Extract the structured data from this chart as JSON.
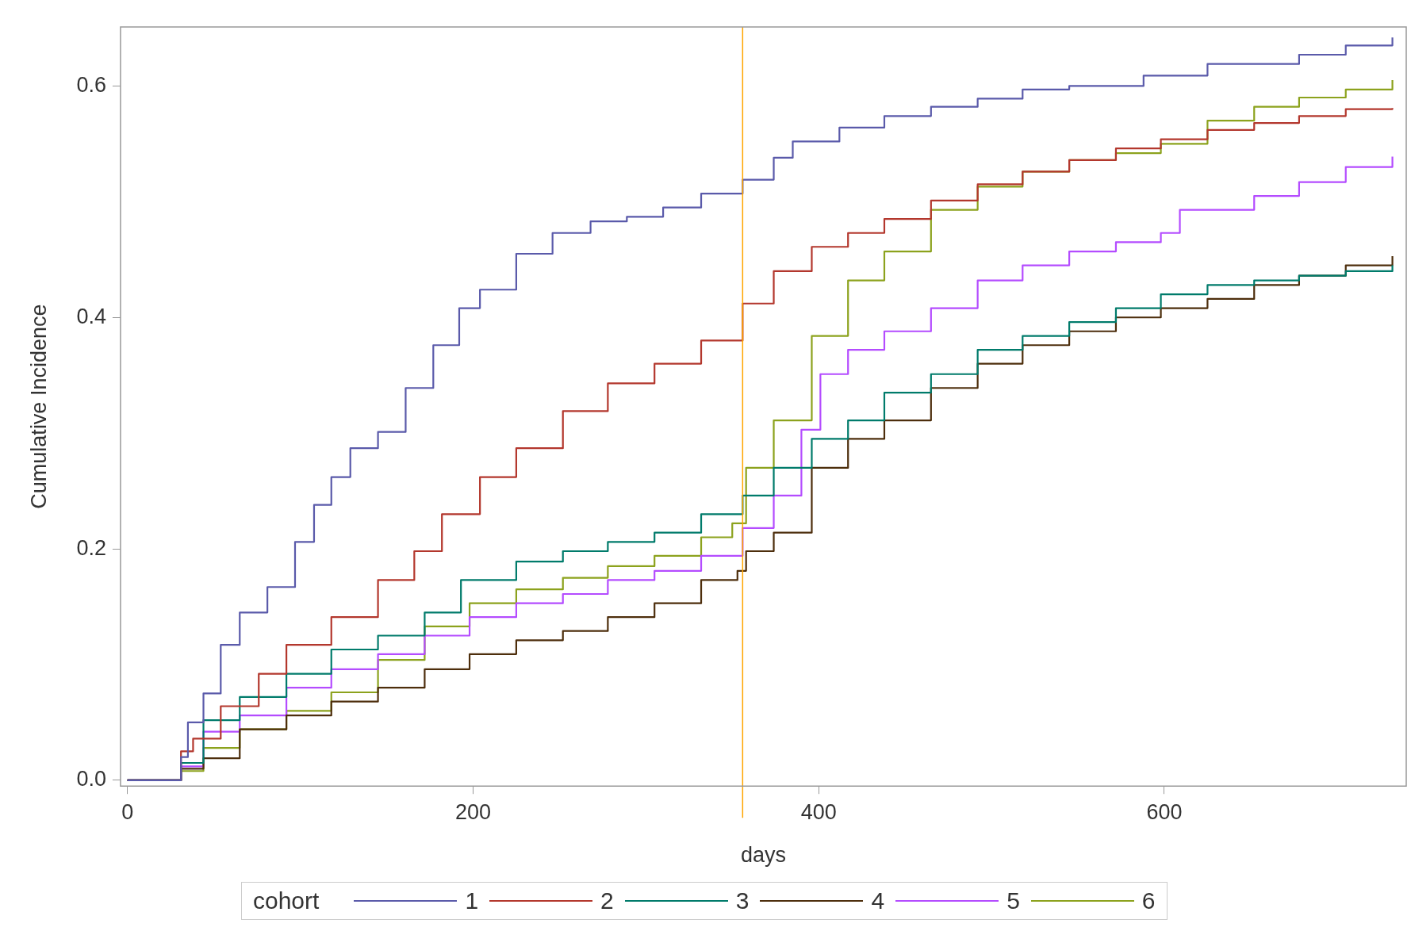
{
  "chart_data": {
    "type": "step",
    "xlabel": "days",
    "ylabel": "Cumulative Incidence",
    "legend_title": "cohort",
    "legend": "bottom",
    "grid": false,
    "xlim": [
      -4,
      740
    ],
    "xticks": [
      0,
      200,
      400,
      600
    ],
    "ylim": [
      -0.005,
      0.651
    ],
    "yticks": [
      {
        "value": 0,
        "label": "0.0"
      },
      {
        "value": 0.2,
        "label": "0.2"
      },
      {
        "value": 0.4,
        "label": "0.4"
      },
      {
        "value": 0.6,
        "label": "0.6"
      }
    ],
    "ref_lines": [
      {
        "axis": "x",
        "value": 356,
        "color": "#ffa500"
      }
    ],
    "series": [
      {
        "name": "1",
        "color": "#5a5aaa",
        "x": [
          0,
          31,
          35,
          44,
          54,
          65,
          81,
          97,
          108,
          118,
          129,
          145,
          161,
          177,
          192,
          204,
          225,
          246,
          268,
          289,
          310,
          332,
          356,
          374,
          385,
          412,
          438,
          465,
          492,
          518,
          545,
          588,
          625,
          678,
          705,
          732
        ],
        "values": [
          0,
          0.02,
          0.05,
          0.075,
          0.117,
          0.145,
          0.167,
          0.206,
          0.238,
          0.262,
          0.287,
          0.301,
          0.339,
          0.376,
          0.408,
          0.424,
          0.455,
          0.473,
          0.483,
          0.487,
          0.495,
          0.507,
          0.519,
          0.538,
          0.552,
          0.564,
          0.574,
          0.582,
          0.589,
          0.597,
          0.6,
          0.609,
          0.619,
          0.627,
          0.635,
          0.642
        ]
      },
      {
        "name": "2",
        "color": "#b3372d",
        "x": [
          0,
          31,
          38,
          54,
          76,
          92,
          118,
          145,
          166,
          182,
          204,
          225,
          252,
          278,
          305,
          332,
          356,
          374,
          396,
          417,
          438,
          465,
          492,
          518,
          545,
          572,
          598,
          625,
          652,
          678,
          705,
          732
        ],
        "values": [
          0,
          0.025,
          0.036,
          0.064,
          0.092,
          0.117,
          0.141,
          0.173,
          0.198,
          0.23,
          0.262,
          0.287,
          0.319,
          0.343,
          0.36,
          0.38,
          0.412,
          0.44,
          0.461,
          0.473,
          0.485,
          0.501,
          0.515,
          0.526,
          0.536,
          0.546,
          0.554,
          0.562,
          0.568,
          0.574,
          0.58,
          0.581
        ]
      },
      {
        "name": "3",
        "color": "#007b6b",
        "x": [
          0,
          31,
          44,
          65,
          92,
          118,
          145,
          172,
          193,
          225,
          252,
          278,
          305,
          332,
          356,
          374,
          396,
          417,
          438,
          465,
          492,
          518,
          545,
          572,
          598,
          625,
          652,
          678,
          705,
          732
        ],
        "values": [
          0,
          0.015,
          0.052,
          0.072,
          0.092,
          0.113,
          0.125,
          0.145,
          0.173,
          0.189,
          0.198,
          0.206,
          0.214,
          0.23,
          0.246,
          0.27,
          0.295,
          0.311,
          0.335,
          0.351,
          0.372,
          0.384,
          0.396,
          0.408,
          0.42,
          0.428,
          0.432,
          0.436,
          0.44,
          0.445
        ]
      },
      {
        "name": "4",
        "color": "#4d2e0c",
        "x": [
          0,
          31,
          44,
          65,
          92,
          118,
          145,
          172,
          198,
          225,
          252,
          278,
          305,
          332,
          353,
          358,
          374,
          396,
          417,
          438,
          465,
          492,
          518,
          545,
          572,
          598,
          625,
          652,
          678,
          705,
          732
        ],
        "values": [
          0,
          0.01,
          0.019,
          0.044,
          0.056,
          0.068,
          0.08,
          0.096,
          0.109,
          0.121,
          0.129,
          0.141,
          0.153,
          0.173,
          0.181,
          0.198,
          0.214,
          0.27,
          0.295,
          0.311,
          0.339,
          0.36,
          0.376,
          0.388,
          0.4,
          0.408,
          0.416,
          0.428,
          0.436,
          0.445,
          0.453
        ]
      },
      {
        "name": "5",
        "color": "#b44cff",
        "x": [
          0,
          31,
          44,
          65,
          92,
          118,
          145,
          172,
          198,
          225,
          252,
          278,
          305,
          332,
          356,
          374,
          390,
          401,
          417,
          438,
          465,
          492,
          518,
          545,
          572,
          598,
          609,
          652,
          678,
          705,
          732
        ],
        "values": [
          0,
          0.012,
          0.042,
          0.056,
          0.08,
          0.096,
          0.109,
          0.125,
          0.141,
          0.153,
          0.161,
          0.173,
          0.181,
          0.194,
          0.218,
          0.246,
          0.303,
          0.351,
          0.372,
          0.388,
          0.408,
          0.432,
          0.445,
          0.457,
          0.465,
          0.473,
          0.493,
          0.505,
          0.517,
          0.53,
          0.539
        ]
      },
      {
        "name": "6",
        "color": "#8ca21d",
        "x": [
          0,
          31,
          44,
          65,
          92,
          118,
          145,
          172,
          198,
          225,
          252,
          278,
          305,
          332,
          350,
          358,
          374,
          396,
          417,
          438,
          465,
          492,
          518,
          545,
          572,
          598,
          625,
          652,
          678,
          705,
          732
        ],
        "values": [
          0,
          0.008,
          0.028,
          0.044,
          0.06,
          0.076,
          0.104,
          0.133,
          0.153,
          0.165,
          0.175,
          0.185,
          0.194,
          0.21,
          0.222,
          0.27,
          0.311,
          0.384,
          0.432,
          0.457,
          0.493,
          0.513,
          0.526,
          0.536,
          0.542,
          0.55,
          0.57,
          0.582,
          0.59,
          0.597,
          0.605
        ]
      }
    ]
  }
}
